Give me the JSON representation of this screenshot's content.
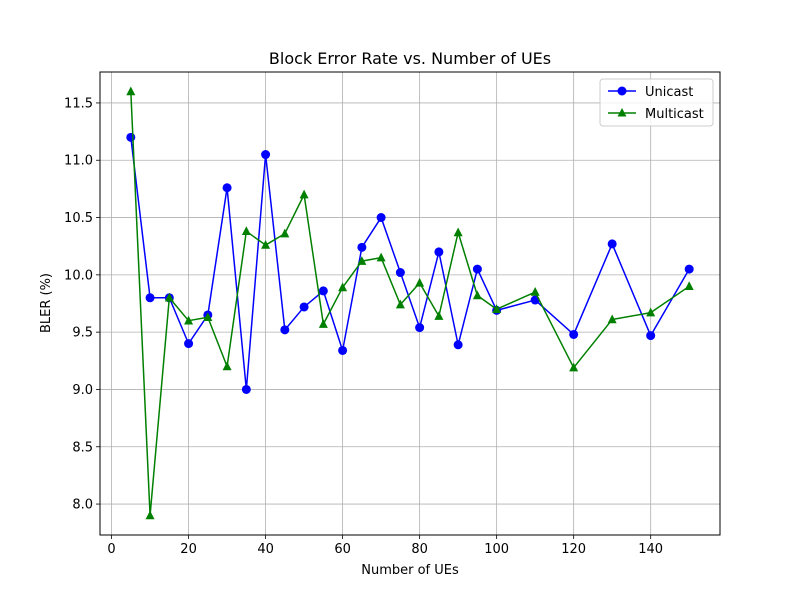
{
  "chart_data": {
    "type": "line",
    "title": "Block Error Rate vs. Number of UEs",
    "xlabel": "Number of UEs",
    "ylabel": "BLER (%)",
    "xlim": [
      -3,
      158
    ],
    "ylim": [
      7.73,
      11.77
    ],
    "xticks": [
      0,
      20,
      40,
      60,
      80,
      100,
      120,
      140
    ],
    "yticks": [
      8.0,
      8.5,
      9.0,
      9.5,
      10.0,
      10.5,
      11.0,
      11.5
    ],
    "xtick_labels": [
      "0",
      "20",
      "40",
      "60",
      "80",
      "100",
      "120",
      "140"
    ],
    "ytick_labels": [
      "8.0",
      "8.5",
      "9.0",
      "9.5",
      "10.0",
      "10.5",
      "11.0",
      "11.5"
    ],
    "grid": true,
    "legend_position": "top-right",
    "x": [
      5,
      10,
      15,
      20,
      25,
      30,
      35,
      40,
      45,
      50,
      55,
      60,
      65,
      70,
      75,
      80,
      85,
      90,
      95,
      100,
      110,
      120,
      130,
      140,
      150
    ],
    "series": [
      {
        "name": "Unicast",
        "color": "#0000ff",
        "marker": "circle",
        "values": [
          11.2,
          9.8,
          9.8,
          9.4,
          9.65,
          10.76,
          9.0,
          11.05,
          9.52,
          9.72,
          9.86,
          9.34,
          10.24,
          10.5,
          10.02,
          9.54,
          10.2,
          9.39,
          10.05,
          9.69,
          9.78,
          9.48,
          10.27,
          9.47,
          10.05
        ]
      },
      {
        "name": "Multicast",
        "color": "#008000",
        "marker": "triangle",
        "values": [
          11.6,
          7.9,
          9.8,
          9.6,
          9.63,
          9.2,
          10.38,
          10.26,
          10.36,
          10.7,
          9.57,
          9.89,
          10.12,
          10.15,
          9.74,
          9.93,
          9.64,
          10.37,
          9.82,
          9.7,
          9.85,
          9.19,
          9.61,
          9.67,
          9.9
        ]
      }
    ]
  }
}
